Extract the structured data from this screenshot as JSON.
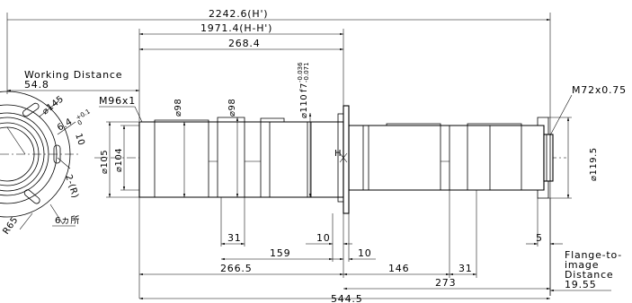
{
  "dimensions": {
    "total_length": "2242.6(H')",
    "h_minus_h_prime": "1971.4(H-H')",
    "length_268": "268.4",
    "working_distance_label": "Working Distance",
    "working_distance_value": "54.8",
    "front_thread": "M96x1",
    "dia_98_a": "⌀98",
    "dia_98_b": "⌀98",
    "dia_110_main": "⌀110",
    "dia_110_tol_upper": "-0.036",
    "dia_110_tol_lower": "-0.071",
    "dia_110_fit": "f7",
    "dia_105": "⌀105",
    "dia_104": "⌀104",
    "dia_145": "⌀145",
    "slot_width_main": "6.4",
    "slot_width_tol": "+0.1",
    "slot_width_tol2": "0",
    "dim_10_flange": "10",
    "dim_2r": "2-(R)",
    "hole_count": "6ヵ所",
    "r65": "R65",
    "rear_thread": "M72x0.75",
    "dia_119_5": "⌀119.5",
    "principal_point": "H",
    "dim_31_left": "31",
    "dim_10_left": "10",
    "dim_159": "159",
    "dim_10_right": "10",
    "dim_5": "5",
    "dim_266_5": "266.5",
    "dim_146": "146",
    "dim_31_right": "31",
    "dim_273": "273",
    "dim_544_5": "544.5",
    "flange_label_1": "Flange-to-",
    "flange_label_2": "image",
    "flange_label_3": "Distance",
    "flange_value": "19.55"
  }
}
